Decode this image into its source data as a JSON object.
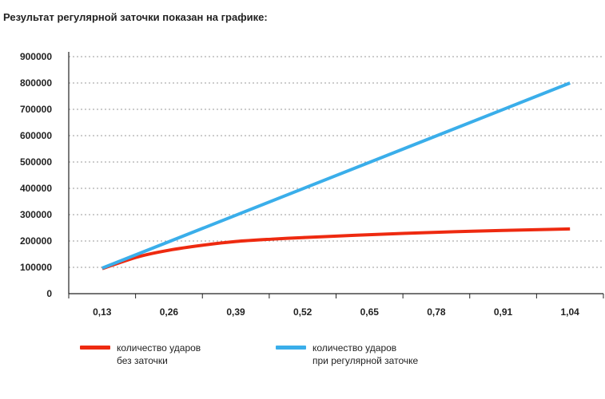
{
  "heading": "Результат регулярной заточки показан на графике:",
  "colors": {
    "red_series": "#ee2a10",
    "blue_series": "#3aaeea",
    "grid": "#999999",
    "axis": "#222222"
  },
  "legend": [
    {
      "line1": "количество ударов",
      "line2": "без заточки",
      "color": "#ee2a10"
    },
    {
      "line1": "количество ударов",
      "line2": "при регулярной заточке",
      "color": "#3aaeea"
    }
  ],
  "chart_data": {
    "type": "line",
    "title": "",
    "xlabel": "",
    "ylabel": "",
    "x_ticks": [
      "0,13",
      "0,26",
      "0,39",
      "0,52",
      "0,65",
      "0,78",
      "0,91",
      "1,04"
    ],
    "y_ticks": [
      "0",
      "100000",
      "200000",
      "300000",
      "400000",
      "500000",
      "600000",
      "700000",
      "800000",
      "900000"
    ],
    "ylim": [
      0,
      900000
    ],
    "xlim": [
      0.065,
      1.105
    ],
    "grid": "horizontal dashed",
    "legend_position": "bottom",
    "series": [
      {
        "color": "#ee2a10",
        "x": [
          0.13,
          0.2,
          0.26,
          0.33,
          0.39,
          0.46,
          0.52,
          0.59,
          0.65,
          0.72,
          0.78,
          0.85,
          0.91,
          0.98,
          1.04
        ],
        "y": [
          95000,
          140000,
          165000,
          185000,
          198000,
          207000,
          213000,
          219000,
          224000,
          229000,
          233000,
          237000,
          240000,
          243000,
          246000
        ]
      },
      {
        "color": "#3aaeea",
        "x": [
          0.13,
          1.04
        ],
        "y": [
          97000,
          800000
        ]
      }
    ]
  }
}
